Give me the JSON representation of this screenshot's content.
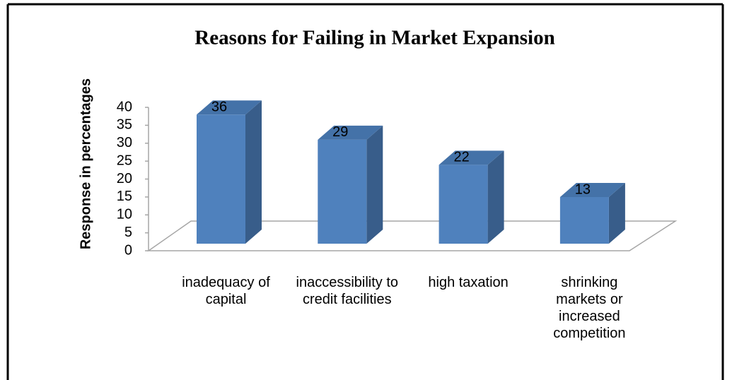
{
  "chart_data": {
    "type": "bar3d",
    "title": "Reasons for Failing in Market Expansion",
    "y_label": "Response in percentages",
    "categories": [
      "inadequacy of capital",
      "inaccessibility to credit facilities",
      "high taxation",
      "shrinking markets or increased competition"
    ],
    "values": [
      36,
      29,
      22,
      13
    ],
    "color": "#4f81bd",
    "ylim": [
      0,
      40
    ],
    "yticks": [
      0,
      5,
      10,
      15,
      20,
      25,
      30,
      35,
      40
    ]
  }
}
